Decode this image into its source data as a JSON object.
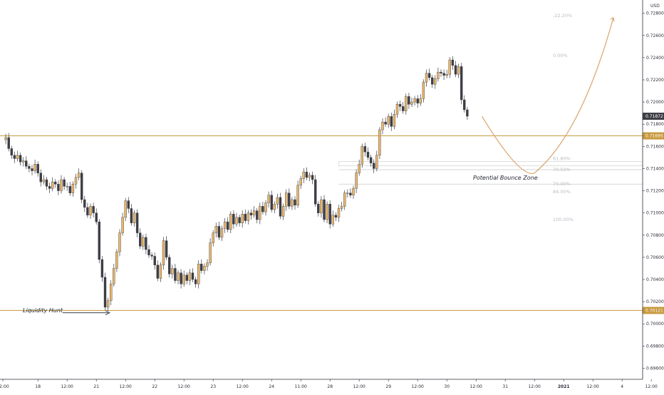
{
  "chart_data": {
    "type": "candlestick",
    "currency_label": "USD",
    "colors": {
      "bull": "#e8b66a",
      "bear": "#3d3d44",
      "line": "#c8993e",
      "grid": "#e6e6e6",
      "last_price_bg": "#3d3d44",
      "level_bg": "#c8993e",
      "fib_line": "#c9c9c9",
      "arrow": "#1e222d",
      "projection": "#d9a36a"
    },
    "y_axis": {
      "range": [
        0.695,
        0.7292
      ],
      "ticks": [
        "0.72800",
        "0.72600",
        "0.72400",
        "0.72200",
        "0.72000",
        "0.71800",
        "0.71600",
        "0.71400",
        "0.71200",
        "0.71000",
        "0.70800",
        "0.70600",
        "0.70400",
        "0.70200",
        "0.70000",
        "0.69800",
        "0.69600"
      ],
      "tick_values": [
        0.728,
        0.726,
        0.724,
        0.722,
        0.72,
        0.718,
        0.716,
        0.714,
        0.712,
        0.71,
        0.708,
        0.706,
        0.704,
        0.702,
        0.7,
        0.698,
        0.696
      ]
    },
    "x_axis": {
      "ticks": [
        "12:00",
        "18",
        "12:00",
        "21",
        "12:00",
        "22",
        "12:00",
        "23",
        "12:00",
        "24",
        "11:00",
        "28",
        "12:00",
        "29",
        "12:00",
        "30",
        "12:00",
        "31",
        "12:00",
        "2021",
        "12:00",
        "4",
        "12:00"
      ],
      "tick_bars": [
        0,
        12,
        22,
        32,
        42,
        52,
        62,
        72,
        82,
        92,
        102,
        112,
        122,
        132,
        142,
        152,
        162,
        172,
        182,
        192,
        202,
        212,
        222
      ]
    },
    "horizontal_levels": [
      {
        "price": 0.71695,
        "label": "0.71695"
      },
      {
        "price": 0.70121,
        "label": "0.70121"
      }
    ],
    "last_price": {
      "price": 0.71872,
      "label": "0.71872"
    },
    "fib_levels": [
      {
        "label": "-22.20%",
        "price": 0.7278
      },
      {
        "label": "0.00%",
        "price": 0.7242
      },
      {
        "label": "61.80%",
        "price": 0.7149
      },
      {
        "label": "70.50%",
        "price": 0.7139
      },
      {
        "label": "79.00%",
        "price": 0.7126
      },
      {
        "label": "84.00%",
        "price": 0.7119
      },
      {
        "label": "100.00%",
        "price": 0.7094
      }
    ],
    "annotations": [
      {
        "text": "Potential Bounce Zone"
      },
      {
        "text": "Liquidity Hunt"
      }
    ],
    "price_path": [
      0.7166,
      0.7168,
      0.7158,
      0.7152,
      0.7149,
      0.7152,
      0.7146,
      0.7147,
      0.7142,
      0.714,
      0.7138,
      0.7144,
      0.7136,
      0.7128,
      0.713,
      0.7124,
      0.7122,
      0.7128,
      0.7126,
      0.712,
      0.713,
      0.7124,
      0.7124,
      0.7118,
      0.7126,
      0.7132,
      0.7136,
      0.7112,
      0.7105,
      0.7098,
      0.7106,
      0.71,
      0.7092,
      0.7058,
      0.7042,
      0.7015,
      0.7021,
      0.7036,
      0.705,
      0.7065,
      0.7082,
      0.7096,
      0.7111,
      0.7104,
      0.7091,
      0.71,
      0.7082,
      0.707,
      0.7078,
      0.7067,
      0.7062,
      0.7061,
      0.7053,
      0.7041,
      0.7053,
      0.7075,
      0.706,
      0.7045,
      0.705,
      0.7039,
      0.7046,
      0.7036,
      0.7044,
      0.7039,
      0.7046,
      0.704,
      0.7036,
      0.7054,
      0.7048,
      0.7052,
      0.7055,
      0.7073,
      0.7082,
      0.7088,
      0.7078,
      0.7086,
      0.7092,
      0.7085,
      0.7099,
      0.709,
      0.7096,
      0.7091,
      0.7099,
      0.7093,
      0.71,
      0.7098,
      0.7102,
      0.7094,
      0.7106,
      0.7101,
      0.7109,
      0.7116,
      0.7103,
      0.7108,
      0.7114,
      0.7097,
      0.7106,
      0.7118,
      0.7106,
      0.7112,
      0.7107,
      0.7125,
      0.7131,
      0.7137,
      0.7132,
      0.7134,
      0.713,
      0.7108,
      0.71,
      0.7112,
      0.7094,
      0.7108,
      0.709,
      0.7098,
      0.7096,
      0.7104,
      0.7106,
      0.7118,
      0.7118,
      0.7116,
      0.7122,
      0.7136,
      0.7144,
      0.716,
      0.7155,
      0.715,
      0.7145,
      0.714,
      0.7152,
      0.7175,
      0.7182,
      0.718,
      0.7187,
      0.7178,
      0.7189,
      0.7198,
      0.7196,
      0.7192,
      0.7205,
      0.7198,
      0.72,
      0.7203,
      0.7199,
      0.7203,
      0.7218,
      0.7226,
      0.7222,
      0.7216,
      0.7221,
      0.7227,
      0.7226,
      0.7224,
      0.7225,
      0.7238,
      0.7233,
      0.7225,
      0.7232,
      0.7202,
      0.7193,
      0.71872
    ],
    "projection_waypoints": [
      {
        "bar": 164,
        "price": 0.71872
      },
      {
        "bar": 182,
        "price": 0.7136
      },
      {
        "bar": 196,
        "price": 0.7184
      },
      {
        "bar": 209,
        "price": 0.7276
      }
    ]
  }
}
